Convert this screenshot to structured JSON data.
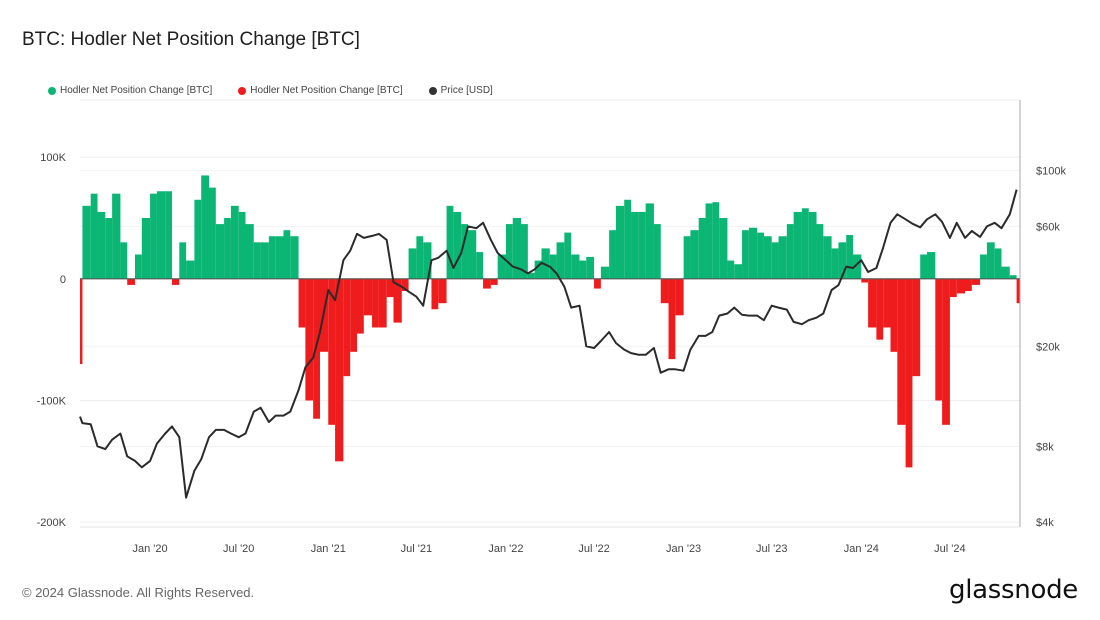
{
  "header": {
    "title": "BTC: Hodler Net Position Change [BTC]"
  },
  "footer": {
    "copyright": "© 2024 Glassnode. All Rights Reserved.",
    "logo": "glassnode"
  },
  "chart_data": {
    "type": "bar+line",
    "title": "BTC: Hodler Net Position Change [BTC]",
    "legend": {
      "placement": "top-left",
      "entries": [
        {
          "label": "Hodler Net Position Change [BTC]",
          "color": "#0bb574"
        },
        {
          "label": "Hodler Net Position Change [BTC]",
          "color": "#ee1c1c"
        },
        {
          "label": "Price [USD]",
          "color": "#333333"
        }
      ]
    },
    "colors": {
      "positive": "#0bb574",
      "negative": "#ee1c1c",
      "price": "#2b2b2b"
    },
    "x_range": [
      "2019-08-10",
      "2024-11-22"
    ],
    "x_ticks": [
      [
        "2020-01-01",
        "Jan '20"
      ],
      [
        "2020-07-01",
        "Jul '20"
      ],
      [
        "2021-01-01",
        "Jan '21"
      ],
      [
        "2021-07-01",
        "Jul '21"
      ],
      [
        "2022-01-01",
        "Jan '22"
      ],
      [
        "2022-07-01",
        "Jul '22"
      ],
      [
        "2023-01-01",
        "Jan '23"
      ],
      [
        "2023-07-01",
        "Jul '23"
      ],
      [
        "2024-01-01",
        "Jan '24"
      ],
      [
        "2024-07-01",
        "Jul '24"
      ]
    ],
    "y_left": {
      "range": [
        -204000,
        147000
      ],
      "ticks": [
        [
          100000,
          "100K"
        ],
        [
          0,
          "0"
        ],
        [
          -100000,
          "-100K"
        ],
        [
          -200000,
          "-200K"
        ]
      ]
    },
    "y_right": {
      "scale": "log",
      "range": [
        3820,
        191000
      ],
      "ticks": [
        [
          100000,
          "$100k"
        ],
        [
          60000,
          "$60k"
        ],
        [
          20000,
          "$20k"
        ],
        [
          8000,
          "$8k"
        ],
        [
          4000,
          "$4k"
        ]
      ]
    },
    "grid": true,
    "columns": [
      "date",
      "hodler_net_position_change_btc",
      "price_usd"
    ],
    "points": [
      [
        "2019-08-10",
        -70000,
        10500
      ],
      [
        "2019-08-15",
        60000,
        9900
      ],
      [
        "2019-09-01",
        70000,
        9800
      ],
      [
        "2019-09-15",
        55000,
        8000
      ],
      [
        "2019-10-01",
        50000,
        7800
      ],
      [
        "2019-10-15",
        70000,
        8500
      ],
      [
        "2019-11-01",
        30000,
        9000
      ],
      [
        "2019-11-15",
        -5000,
        7300
      ],
      [
        "2019-12-01",
        20000,
        7000
      ],
      [
        "2019-12-15",
        50000,
        6600
      ],
      [
        "2020-01-01",
        70000,
        7000
      ],
      [
        "2020-01-15",
        72000,
        8200
      ],
      [
        "2020-02-01",
        72000,
        9000
      ],
      [
        "2020-02-15",
        -5000,
        9600
      ],
      [
        "2020-03-01",
        30000,
        8700
      ],
      [
        "2020-03-15",
        15000,
        5000
      ],
      [
        "2020-04-01",
        65000,
        6400
      ],
      [
        "2020-04-15",
        85000,
        7100
      ],
      [
        "2020-05-01",
        75000,
        8700
      ],
      [
        "2020-05-15",
        45000,
        9300
      ],
      [
        "2020-06-01",
        50000,
        9300
      ],
      [
        "2020-06-15",
        60000,
        9000
      ],
      [
        "2020-07-01",
        55000,
        8700
      ],
      [
        "2020-07-15",
        45000,
        9000
      ],
      [
        "2020-08-01",
        30000,
        11000
      ],
      [
        "2020-08-15",
        30000,
        11400
      ],
      [
        "2020-09-01",
        35000,
        10000
      ],
      [
        "2020-09-15",
        35000,
        10600
      ],
      [
        "2020-10-01",
        40000,
        10600
      ],
      [
        "2020-10-15",
        35000,
        11000
      ],
      [
        "2020-11-01",
        -40000,
        13400
      ],
      [
        "2020-11-15",
        -100000,
        16500
      ],
      [
        "2020-12-01",
        -115000,
        18000
      ],
      [
        "2020-12-15",
        -60000,
        22800
      ],
      [
        "2021-01-01",
        -120000,
        33500
      ],
      [
        "2021-01-15",
        -150000,
        30500
      ],
      [
        "2021-02-01",
        -80000,
        44000
      ],
      [
        "2021-02-15",
        -60000,
        48000
      ],
      [
        "2021-03-01",
        -45000,
        56000
      ],
      [
        "2021-03-15",
        -30000,
        54000
      ],
      [
        "2021-04-01",
        -40000,
        55000
      ],
      [
        "2021-04-15",
        -40000,
        56000
      ],
      [
        "2021-05-01",
        -15000,
        53000
      ],
      [
        "2021-05-15",
        -36000,
        36000
      ],
      [
        "2021-06-01",
        -10000,
        34500
      ],
      [
        "2021-06-15",
        25000,
        33000
      ],
      [
        "2021-07-01",
        35000,
        31500
      ],
      [
        "2021-07-15",
        30000,
        29000
      ],
      [
        "2021-08-01",
        -25000,
        44000
      ],
      [
        "2021-08-15",
        -20000,
        45000
      ],
      [
        "2021-09-01",
        60000,
        48000
      ],
      [
        "2021-09-15",
        55000,
        41000
      ],
      [
        "2021-10-01",
        45000,
        47000
      ],
      [
        "2021-10-15",
        40000,
        60000
      ],
      [
        "2021-11-01",
        22000,
        59000
      ],
      [
        "2021-11-15",
        -8000,
        62000
      ],
      [
        "2021-12-01",
        -5000,
        53000
      ],
      [
        "2021-12-15",
        20000,
        47000
      ],
      [
        "2022-01-01",
        45000,
        44000
      ],
      [
        "2022-01-15",
        50000,
        41500
      ],
      [
        "2022-02-01",
        45000,
        40500
      ],
      [
        "2022-02-15",
        5000,
        39000
      ],
      [
        "2022-03-01",
        15000,
        40500
      ],
      [
        "2022-03-15",
        25000,
        43000
      ],
      [
        "2022-04-01",
        20000,
        41500
      ],
      [
        "2022-04-15",
        30000,
        39000
      ],
      [
        "2022-05-01",
        38000,
        34500
      ],
      [
        "2022-05-15",
        20000,
        28500
      ],
      [
        "2022-06-01",
        15000,
        29000
      ],
      [
        "2022-06-15",
        18000,
        20000
      ],
      [
        "2022-07-01",
        -8000,
        19700
      ],
      [
        "2022-07-15",
        10000,
        21000
      ],
      [
        "2022-08-01",
        40000,
        22800
      ],
      [
        "2022-08-15",
        60000,
        20600
      ],
      [
        "2022-09-01",
        65000,
        19400
      ],
      [
        "2022-09-15",
        55000,
        18800
      ],
      [
        "2022-10-01",
        55000,
        18500
      ],
      [
        "2022-10-15",
        62000,
        18500
      ],
      [
        "2022-11-01",
        45000,
        19700
      ],
      [
        "2022-11-15",
        -20000,
        15700
      ],
      [
        "2022-12-01",
        -66000,
        16200
      ],
      [
        "2022-12-15",
        -30000,
        16200
      ],
      [
        "2023-01-01",
        35000,
        16000
      ],
      [
        "2023-01-15",
        40000,
        19400
      ],
      [
        "2023-02-01",
        50000,
        22000
      ],
      [
        "2023-02-15",
        62000,
        22000
      ],
      [
        "2023-03-01",
        63000,
        22800
      ],
      [
        "2023-03-15",
        50000,
        26500
      ],
      [
        "2023-04-01",
        15000,
        27000
      ],
      [
        "2023-04-15",
        12000,
        28500
      ],
      [
        "2023-05-01",
        40000,
        26700
      ],
      [
        "2023-05-15",
        42000,
        26500
      ],
      [
        "2023-06-01",
        38000,
        26500
      ],
      [
        "2023-06-15",
        35000,
        25400
      ],
      [
        "2023-07-01",
        30000,
        29000
      ],
      [
        "2023-07-15",
        35000,
        28500
      ],
      [
        "2023-08-01",
        45000,
        28000
      ],
      [
        "2023-08-15",
        55000,
        25000
      ],
      [
        "2023-09-01",
        58000,
        24500
      ],
      [
        "2023-09-15",
        55000,
        25400
      ],
      [
        "2023-10-01",
        45000,
        26000
      ],
      [
        "2023-10-15",
        35000,
        27000
      ],
      [
        "2023-11-01",
        25000,
        33500
      ],
      [
        "2023-11-15",
        30000,
        35000
      ],
      [
        "2023-12-01",
        36000,
        41500
      ],
      [
        "2023-12-15",
        20000,
        41000
      ],
      [
        "2024-01-01",
        -3000,
        44000
      ],
      [
        "2024-01-15",
        -40000,
        39500
      ],
      [
        "2024-02-01",
        -50000,
        41000
      ],
      [
        "2024-02-15",
        -40000,
        49500
      ],
      [
        "2024-03-01",
        -60000,
        62000
      ],
      [
        "2024-03-15",
        -120000,
        67000
      ],
      [
        "2024-04-01",
        -155000,
        64000
      ],
      [
        "2024-04-15",
        -80000,
        61500
      ],
      [
        "2024-05-01",
        20000,
        59500
      ],
      [
        "2024-05-15",
        22000,
        64000
      ],
      [
        "2024-06-01",
        -100000,
        67000
      ],
      [
        "2024-06-15",
        -120000,
        62500
      ],
      [
        "2024-07-01",
        -15000,
        54000
      ],
      [
        "2024-07-15",
        -12000,
        62000
      ],
      [
        "2024-08-01",
        -10000,
        54000
      ],
      [
        "2024-08-15",
        -5000,
        57500
      ],
      [
        "2024-09-01",
        20000,
        54500
      ],
      [
        "2024-09-15",
        30000,
        60000
      ],
      [
        "2024-10-01",
        25000,
        62000
      ],
      [
        "2024-10-15",
        10000,
        59000
      ],
      [
        "2024-11-01",
        3000,
        67000
      ],
      [
        "2024-11-15",
        -20000,
        84000
      ]
    ]
  }
}
